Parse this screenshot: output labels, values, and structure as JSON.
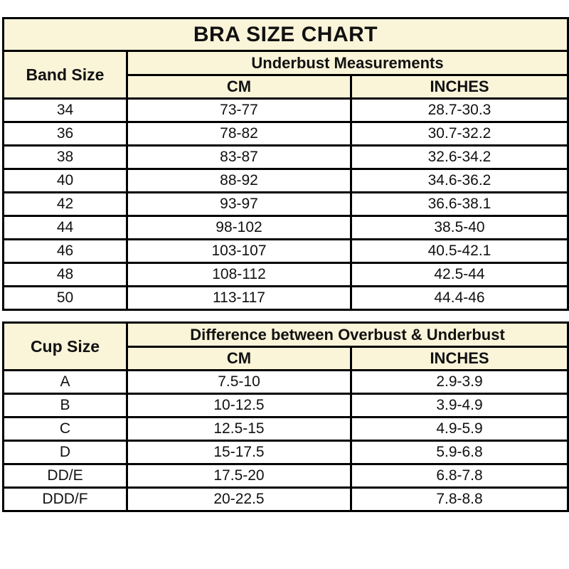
{
  "colors": {
    "header_bg": "#faf4d9",
    "row_bg": "#ffffff",
    "border": "#000000",
    "text": "#111111"
  },
  "chart_data": [
    {
      "type": "table",
      "title": "BRA SIZE CHART",
      "corner_header": "Band Size",
      "group_header": "Underbust Measurements",
      "sub_headers": [
        "CM",
        "INCHES"
      ],
      "rows": [
        [
          "34",
          "73-77",
          "28.7-30.3"
        ],
        [
          "36",
          "78-82",
          "30.7-32.2"
        ],
        [
          "38",
          "83-87",
          "32.6-34.2"
        ],
        [
          "40",
          "88-92",
          "34.6-36.2"
        ],
        [
          "42",
          "93-97",
          "36.6-38.1"
        ],
        [
          "44",
          "98-102",
          "38.5-40"
        ],
        [
          "46",
          "103-107",
          "40.5-42.1"
        ],
        [
          "48",
          "108-112",
          "42.5-44"
        ],
        [
          "50",
          "113-117",
          "44.4-46"
        ]
      ]
    },
    {
      "type": "table",
      "corner_header": "Cup Size",
      "group_header": "Difference between Overbust & Underbust",
      "sub_headers": [
        "CM",
        "INCHES"
      ],
      "rows": [
        [
          "A",
          "7.5-10",
          "2.9-3.9"
        ],
        [
          "B",
          "10-12.5",
          "3.9-4.9"
        ],
        [
          "C",
          "12.5-15",
          "4.9-5.9"
        ],
        [
          "D",
          "15-17.5",
          "5.9-6.8"
        ],
        [
          "DD/E",
          "17.5-20",
          "6.8-7.8"
        ],
        [
          "DDD/F",
          "20-22.5",
          "7.8-8.8"
        ]
      ]
    }
  ]
}
